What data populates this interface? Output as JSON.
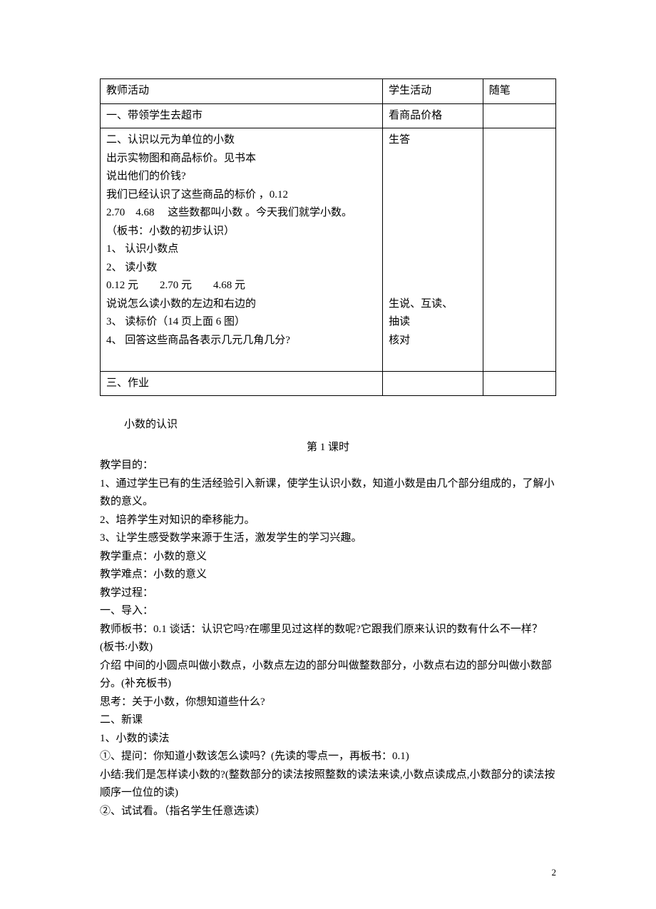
{
  "table": {
    "header": {
      "teacher": "教师活动",
      "student": "学生活动",
      "note": "随笔"
    },
    "row1": {
      "teacher": "一、带领学生去超市",
      "student": "看商品价格",
      "note": ""
    },
    "row2": {
      "teacher_lines": [
        "二、认识以元为单位的小数",
        "出示实物图和商品标价。见书本",
        "说出他们的价钱?",
        "我们已经认识了这些商品的标价 ，0.12",
        "2.70　4.68　 这些数都叫小数 。今天我们就学小数。",
        "（板书：小数的初步认识）",
        "1、 认识小数点",
        "2、 读小数",
        "0.12 元　　2.70 元　　4.68 元",
        "说说怎么读小数的左边和右边的",
        "3、 读标价（14 页上面 6 图）",
        "4、 回答这些商品各表示几元几角几分?",
        ""
      ],
      "student_lines": [
        "生答",
        "",
        "",
        "",
        "",
        "",
        "",
        "",
        "",
        "生说、互读、",
        "抽读",
        "核对",
        ""
      ],
      "note": ""
    },
    "row3": {
      "teacher": "三、作业",
      "student": "",
      "note": ""
    }
  },
  "lesson": {
    "title": "小数的认识",
    "period": "第 1 课时",
    "lines": [
      "教学目的：",
      "1、通过学生已有的生活经验引入新课，使学生认识小数，知道小数是由几个部分组成的，了解小数的意义。",
      "2、培养学生对知识的牵移能力。",
      "3、让学生感受数学来源于生活，激发学生的学习兴趣。",
      "教学重点：小数的意义",
      "教学难点：小数的意义",
      "教学过程：",
      "一、导入：",
      "教师板书：0.1 谈话：认识它吗?在哪里见过这样的数呢?它跟我们原来认识的数有什么不一样？(板书:小数)",
      "介绍 中间的小圆点叫做小数点，小数点左边的部分叫做整数部分，小数点右边的部分叫做小数部分。(补充板书)",
      "思考：关于小数，你想知道些什么?",
      "二、新课",
      "1、小数的读法"
    ],
    "indent_lines": [
      "①、提问：你知道小数该怎么读吗？(先读的零点一，再板书：0.1)",
      "小结:我们是怎样读小数的?(整数部分的读法按照整数的读法来读,小数点读成点,小数部分的读法按顺序一位位的读)",
      "②、试试看。（指名学生任意选读）"
    ]
  },
  "page_number": "2"
}
